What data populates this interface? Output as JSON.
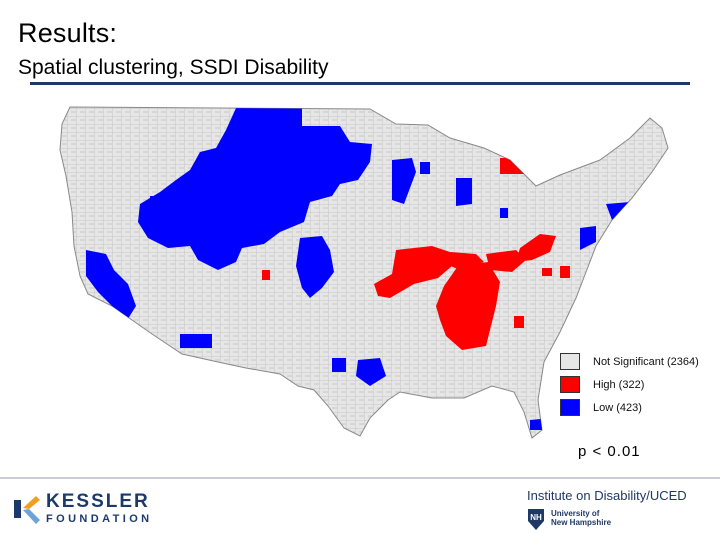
{
  "slide": {
    "title": "Results:",
    "subtitle": "Spatial clustering, SSDI Disability"
  },
  "map": {
    "subject": "Contiguous United States counties",
    "legend": [
      {
        "label": "Not Significant (2364)",
        "color": "#e6e6e6"
      },
      {
        "label": "High (322)",
        "color": "#ff0000"
      },
      {
        "label": "Low (423)",
        "color": "#0000ff"
      }
    ],
    "p_value": "p < 0.01"
  },
  "footer": {
    "kessler_name": "KESSLER",
    "kessler_sub": "FOUNDATION",
    "iod_title": "Institute on Disability/UCED",
    "unh_line1": "University of",
    "unh_line2": "New Hampshire"
  }
}
